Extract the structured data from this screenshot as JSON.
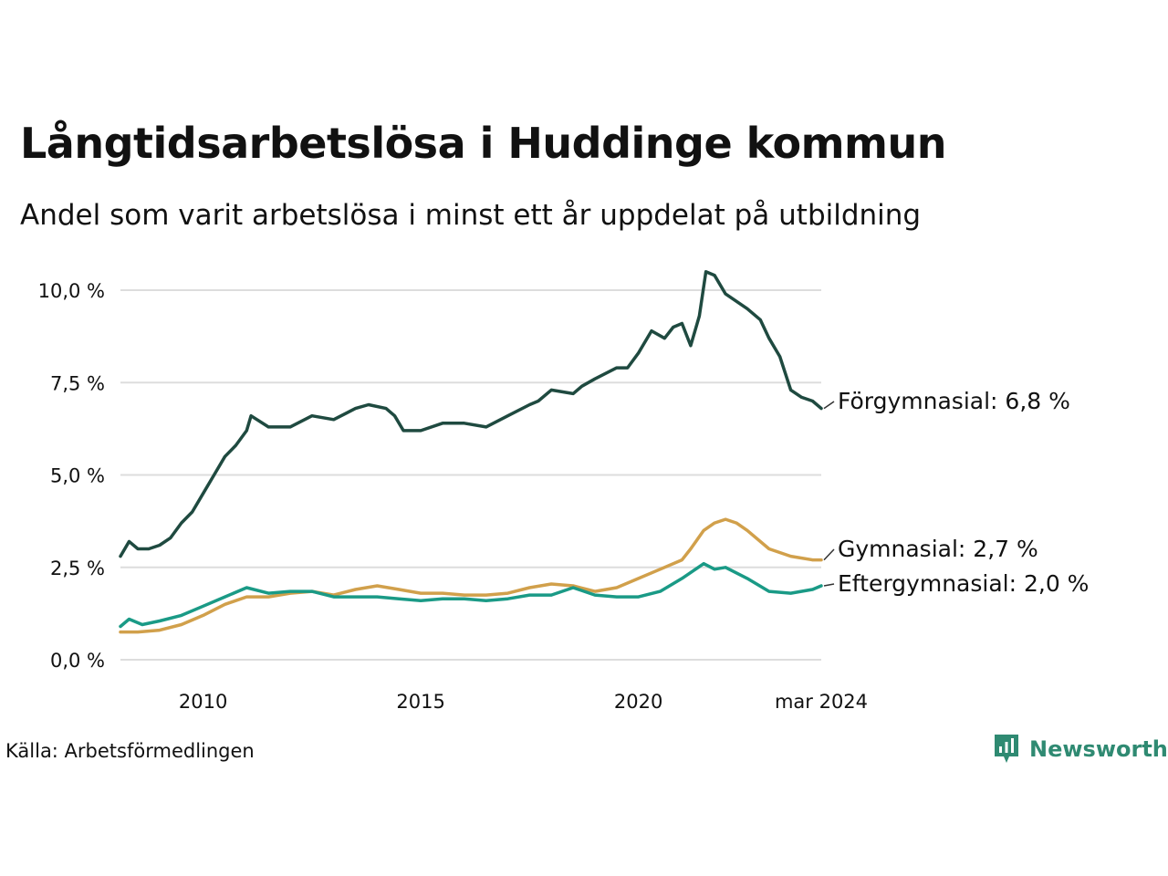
{
  "title": "Långtidsarbetslösa i Huddinge kommun",
  "subtitle": "Andel som varit arbetslösa i minst ett år uppdelat på utbildning",
  "source": "Källa: Arbetsförmedlingen",
  "brand": {
    "name": "Newsworthy",
    "icon": "newsworthy-logo-icon",
    "color": "#2f8a72"
  },
  "chart_data": {
    "type": "line",
    "title": "Långtidsarbetslösa i Huddinge kommun",
    "xlabel": "",
    "ylabel": "",
    "xlim": [
      2008.1,
      2024.2
    ],
    "ylim": [
      0,
      10.5
    ],
    "grid": true,
    "y_ticks": [
      0,
      2.5,
      5,
      7.5,
      10
    ],
    "y_tick_labels": [
      "0,0 %",
      "2,5 %",
      "5,0 %",
      "7,5 %",
      "10,0 %"
    ],
    "x_ticks": [
      2010,
      2015,
      2020,
      2024.2
    ],
    "x_tick_labels": [
      "2010",
      "2015",
      "2020",
      "mar 2024"
    ],
    "series": [
      {
        "name": "Förgymnasial",
        "label": "Förgymnasial: 6,8 %",
        "color": "#1f4a40",
        "x": [
          2008.1,
          2008.3,
          2008.5,
          2008.75,
          2009.0,
          2009.25,
          2009.5,
          2009.75,
          2010.0,
          2010.25,
          2010.5,
          2010.75,
          2011.0,
          2011.1,
          2011.5,
          2012.0,
          2012.5,
          2013.0,
          2013.5,
          2013.8,
          2014.2,
          2014.4,
          2014.6,
          2015.0,
          2015.5,
          2016.0,
          2016.5,
          2017.0,
          2017.5,
          2017.7,
          2018.0,
          2018.5,
          2018.7,
          2019.0,
          2019.5,
          2019.75,
          2020.0,
          2020.3,
          2020.6,
          2020.8,
          2021.0,
          2021.2,
          2021.4,
          2021.55,
          2021.75,
          2022.0,
          2022.5,
          2022.8,
          2023.0,
          2023.25,
          2023.5,
          2023.75,
          2024.0,
          2024.2
        ],
        "y": [
          2.8,
          3.2,
          3.0,
          3.0,
          3.1,
          3.3,
          3.7,
          4.0,
          4.5,
          5.0,
          5.5,
          5.8,
          6.2,
          6.6,
          6.3,
          6.3,
          6.6,
          6.5,
          6.8,
          6.9,
          6.8,
          6.6,
          6.2,
          6.2,
          6.4,
          6.4,
          6.3,
          6.6,
          6.9,
          7.0,
          7.3,
          7.2,
          7.4,
          7.6,
          7.9,
          7.9,
          8.3,
          8.9,
          8.7,
          9.0,
          9.1,
          8.5,
          9.3,
          10.5,
          10.4,
          9.9,
          9.5,
          9.2,
          8.7,
          8.2,
          7.3,
          7.1,
          7.0,
          6.8
        ]
      },
      {
        "name": "Gymnasial",
        "label": "Gymnasial: 2,7 %",
        "color": "#d1a04b",
        "x": [
          2008.1,
          2008.5,
          2009.0,
          2009.5,
          2010.0,
          2010.5,
          2011.0,
          2011.5,
          2012.0,
          2012.5,
          2013.0,
          2013.5,
          2014.0,
          2014.5,
          2015.0,
          2015.5,
          2016.0,
          2016.5,
          2017.0,
          2017.5,
          2018.0,
          2018.5,
          2019.0,
          2019.5,
          2020.0,
          2020.5,
          2021.0,
          2021.2,
          2021.5,
          2021.75,
          2022.0,
          2022.25,
          2022.5,
          2023.0,
          2023.5,
          2024.0,
          2024.2
        ],
        "y": [
          0.75,
          0.75,
          0.8,
          0.95,
          1.2,
          1.5,
          1.7,
          1.7,
          1.8,
          1.85,
          1.75,
          1.9,
          2.0,
          1.9,
          1.8,
          1.8,
          1.75,
          1.75,
          1.8,
          1.95,
          2.05,
          2.0,
          1.85,
          1.95,
          2.2,
          2.45,
          2.7,
          3.0,
          3.5,
          3.7,
          3.8,
          3.7,
          3.5,
          3.0,
          2.8,
          2.7,
          2.7
        ]
      },
      {
        "name": "Eftergymnasial",
        "label": "Eftergymnasial: 2,0 %",
        "color": "#1a9a86",
        "x": [
          2008.1,
          2008.3,
          2008.6,
          2009.0,
          2009.5,
          2010.0,
          2010.5,
          2011.0,
          2011.5,
          2012.0,
          2012.5,
          2013.0,
          2013.5,
          2014.0,
          2014.5,
          2015.0,
          2015.5,
          2016.0,
          2016.5,
          2017.0,
          2017.5,
          2018.0,
          2018.5,
          2019.0,
          2019.5,
          2020.0,
          2020.5,
          2021.0,
          2021.25,
          2021.5,
          2021.75,
          2022.0,
          2022.5,
          2023.0,
          2023.5,
          2024.0,
          2024.2
        ],
        "y": [
          0.9,
          1.1,
          0.95,
          1.05,
          1.2,
          1.45,
          1.7,
          1.95,
          1.8,
          1.85,
          1.85,
          1.7,
          1.7,
          1.7,
          1.65,
          1.6,
          1.65,
          1.65,
          1.6,
          1.65,
          1.75,
          1.75,
          1.95,
          1.75,
          1.7,
          1.7,
          1.85,
          2.2,
          2.4,
          2.6,
          2.45,
          2.5,
          2.2,
          1.85,
          1.8,
          1.9,
          2.0
        ]
      }
    ]
  }
}
